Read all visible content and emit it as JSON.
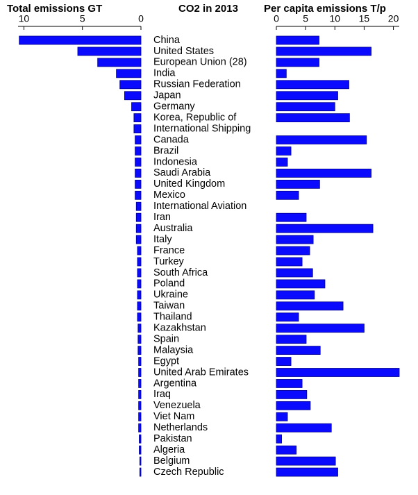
{
  "chart_data": {
    "type": "butterfly",
    "title": "CO2 in 2013",
    "categories": [
      "China",
      "United States",
      "European Union (28)",
      "India",
      "Russian Federation",
      "Japan",
      "Germany",
      "Korea, Republic of",
      "International Shipping",
      "Canada",
      "Brazil",
      "Indonesia",
      "Saudi Arabia",
      "United Kingdom",
      "Mexico",
      "International Aviation",
      "Iran",
      "Australia",
      "Italy",
      "France",
      "Turkey",
      "South Africa",
      "Poland",
      "Ukraine",
      "Taiwan",
      "Thailand",
      "Kazakhstan",
      "Spain",
      "Malaysia",
      "Egypt",
      "United Arab Emirates",
      "Argentina",
      "Iraq",
      "Venezuela",
      "Viet Nam",
      "Netherlands",
      "Pakistan",
      "Algeria",
      "Belgium",
      "Czech Republic"
    ],
    "series": [
      {
        "name": "Total emissions GT",
        "color": "#0a0aff",
        "xlim": [
          10.5,
          0
        ],
        "xticks": [
          10,
          5,
          0
        ],
        "values": [
          10.4,
          5.4,
          3.7,
          2.1,
          1.8,
          1.4,
          0.8,
          0.6,
          0.6,
          0.5,
          0.5,
          0.5,
          0.5,
          0.5,
          0.5,
          0.4,
          0.4,
          0.4,
          0.4,
          0.3,
          0.3,
          0.3,
          0.3,
          0.3,
          0.3,
          0.3,
          0.25,
          0.25,
          0.25,
          0.2,
          0.2,
          0.2,
          0.2,
          0.2,
          0.2,
          0.2,
          0.15,
          0.15,
          0.1,
          0.1
        ]
      },
      {
        "name": "Per capita emissions T/p",
        "color": "#0a0aff",
        "xlim": [
          0,
          21
        ],
        "xticks": [
          0,
          5,
          10,
          15,
          20
        ],
        "values": [
          7.3,
          16.2,
          7.3,
          1.7,
          12.4,
          10.5,
          10.0,
          12.5,
          null,
          15.4,
          2.5,
          1.9,
          16.2,
          7.4,
          3.8,
          null,
          5.1,
          16.5,
          6.3,
          5.7,
          4.4,
          6.2,
          8.3,
          6.5,
          11.4,
          3.8,
          15.0,
          5.1,
          7.5,
          2.5,
          21,
          4.4,
          5.2,
          5.8,
          1.9,
          9.4,
          0.9,
          3.4,
          10.1,
          10.5
        ]
      }
    ]
  }
}
